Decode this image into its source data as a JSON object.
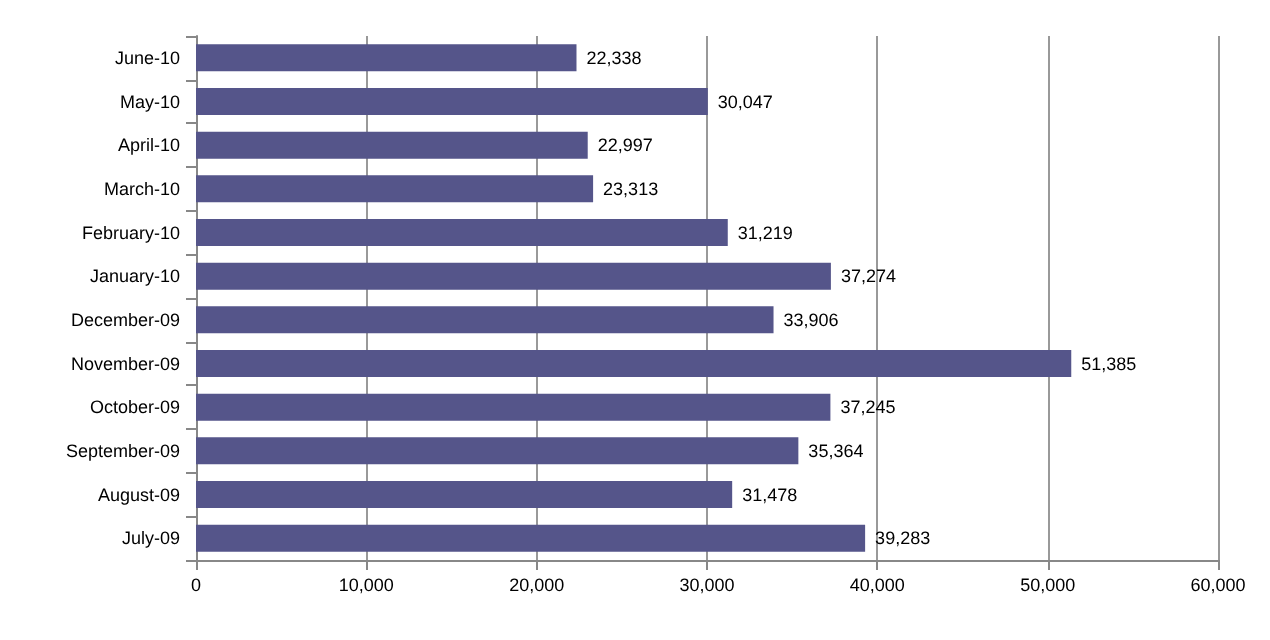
{
  "chart_data": {
    "type": "bar",
    "orientation": "horizontal",
    "categories": [
      "June-10",
      "May-10",
      "April-10",
      "March-10",
      "February-10",
      "January-10",
      "December-09",
      "November-09",
      "October-09",
      "September-09",
      "August-09",
      "July-09"
    ],
    "values": [
      22338,
      30047,
      22997,
      23313,
      31219,
      37274,
      33906,
      51385,
      37245,
      35364,
      31478,
      39283
    ],
    "value_labels": [
      "22,338",
      "30,047",
      "22,997",
      "23,313",
      "31,219",
      "37,274",
      "33,906",
      "51,385",
      "37,245",
      "35,364",
      "31,478",
      "39,283"
    ],
    "color": "#55558a",
    "xlim": [
      0,
      60000
    ],
    "xticks": [
      {
        "value": 0,
        "label": "0"
      },
      {
        "value": 10000,
        "label": "10,000"
      },
      {
        "value": 20000,
        "label": "20,000"
      },
      {
        "value": 30000,
        "label": "30,000"
      },
      {
        "value": 40000,
        "label": "40,000"
      },
      {
        "value": 50000,
        "label": "50,000"
      },
      {
        "value": 60000,
        "label": "60,000"
      }
    ],
    "grid": "x"
  }
}
